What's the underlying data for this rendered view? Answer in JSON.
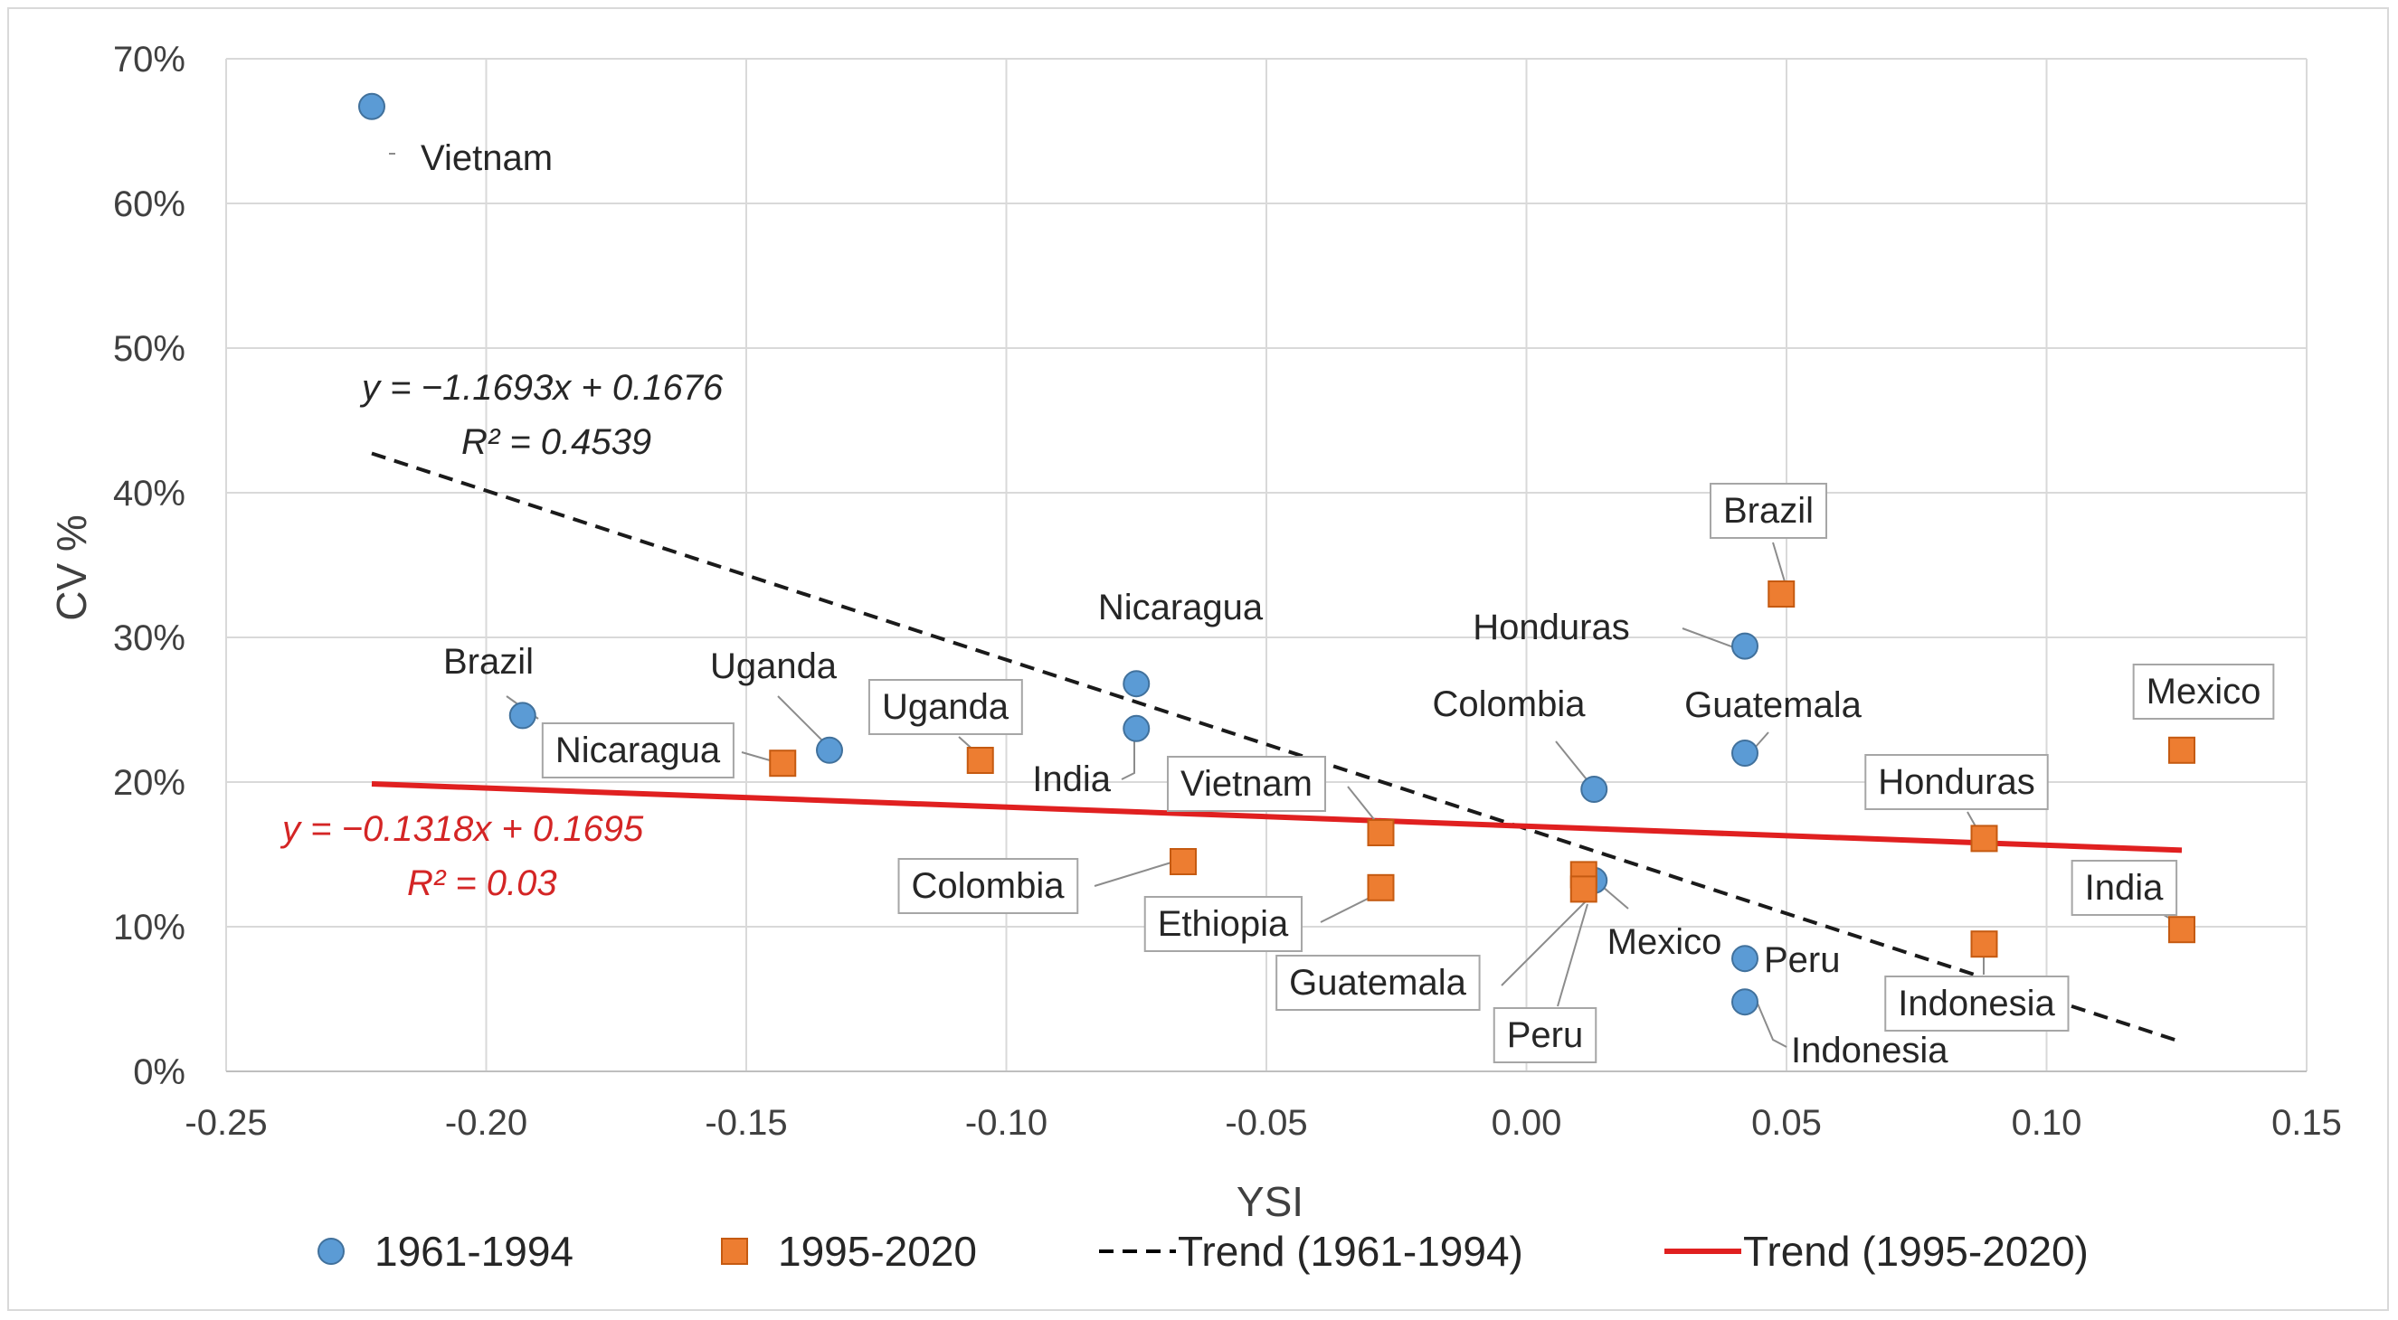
{
  "chart_data": {
    "type": "scatter",
    "xlabel": "YSI",
    "ylabel": "CV %",
    "xlim": [
      -0.25,
      0.15
    ],
    "ylim": [
      0,
      0.7
    ],
    "xticks": [
      "-0.25",
      "-0.20",
      "-0.15",
      "-0.10",
      "-0.05",
      "0.00",
      "0.05",
      "0.10",
      "0.15"
    ],
    "yticks": [
      "0%",
      "10%",
      "20%",
      "30%",
      "40%",
      "50%",
      "60%",
      "70%"
    ],
    "grid": true,
    "legend_position": "bottom",
    "series": [
      {
        "name": "1961-1994",
        "color": "#5b9bd5",
        "marker": "circle",
        "points": [
          {
            "label": "Vietnam",
            "x": -0.222,
            "y": 0.667
          },
          {
            "label": "Brazil",
            "x": -0.193,
            "y": 0.246
          },
          {
            "label": "Uganda",
            "x": -0.134,
            "y": 0.222
          },
          {
            "label": "Nicaragua",
            "x": -0.075,
            "y": 0.268
          },
          {
            "label": "India",
            "x": -0.075,
            "y": 0.237
          },
          {
            "label": "Colombia",
            "x": 0.013,
            "y": 0.195
          },
          {
            "label": "Mexico",
            "x": 0.013,
            "y": 0.132
          },
          {
            "label": "Honduras",
            "x": 0.042,
            "y": 0.294
          },
          {
            "label": "Guatemala",
            "x": 0.042,
            "y": 0.22
          },
          {
            "label": "Peru",
            "x": 0.042,
            "y": 0.078
          },
          {
            "label": "Indonesia",
            "x": 0.042,
            "y": 0.048
          }
        ]
      },
      {
        "name": "1995-2020",
        "color": "#ed7d31",
        "marker": "square",
        "points": [
          {
            "label": "Nicaragua",
            "x": -0.143,
            "y": 0.213
          },
          {
            "label": "Uganda",
            "x": -0.105,
            "y": 0.215
          },
          {
            "label": "Colombia",
            "x": -0.066,
            "y": 0.145
          },
          {
            "label": "Vietnam",
            "x": -0.028,
            "y": 0.165
          },
          {
            "label": "Ethiopia",
            "x": -0.028,
            "y": 0.127
          },
          {
            "label": "Guatemala",
            "x": 0.011,
            "y": 0.136
          },
          {
            "label": "Peru",
            "x": 0.011,
            "y": 0.126
          },
          {
            "label": "Brazil",
            "x": 0.049,
            "y": 0.33
          },
          {
            "label": "Honduras",
            "x": 0.088,
            "y": 0.161
          },
          {
            "label": "Indonesia",
            "x": 0.088,
            "y": 0.088
          },
          {
            "label": "Mexico",
            "x": 0.126,
            "y": 0.222
          },
          {
            "label": "India",
            "x": 0.126,
            "y": 0.098
          }
        ]
      }
    ],
    "trendlines": [
      {
        "name": "Trend (1961-1994)",
        "color": "#000000",
        "dash": true,
        "slope": -1.1693,
        "intercept": 0.1676,
        "x_range": [
          -0.222,
          0.126
        ],
        "equation": "y = −1.1693x + 0.1676",
        "r2": "R² = 0.4539"
      },
      {
        "name": "Trend (1995-2020)",
        "color": "#e02020",
        "dash": false,
        "slope": -0.1318,
        "intercept": 0.1695,
        "x_range": [
          -0.222,
          0.126
        ],
        "equation": "y = −0.1318x + 0.1695",
        "r2": "R² = 0.03"
      }
    ]
  }
}
